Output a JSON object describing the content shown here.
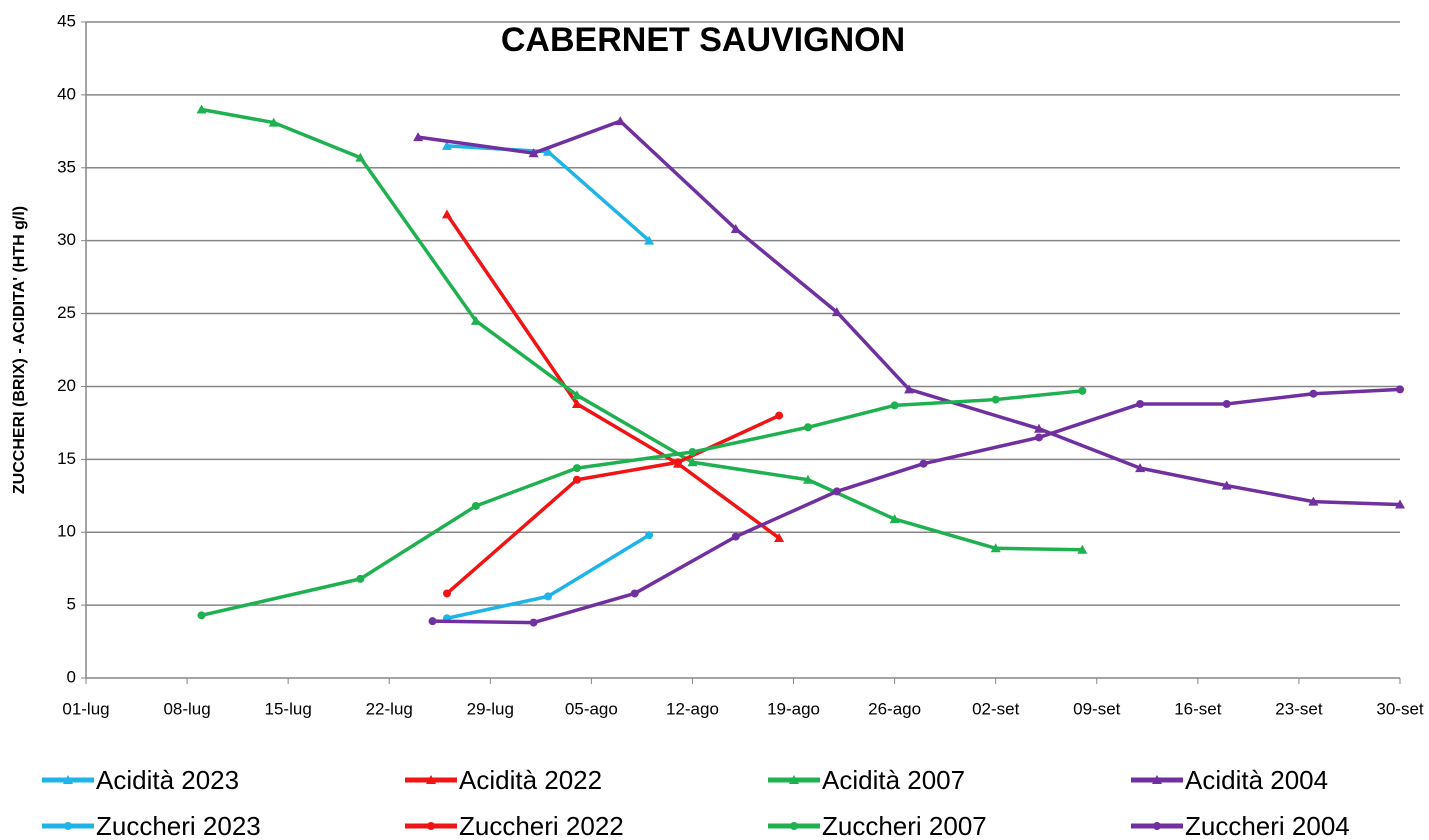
{
  "chart_data": {
    "type": "line",
    "title": "CABERNET SAUVIGNON",
    "y_label": "ZUCCHERI (BRIX) - ACIDITA' (HTH g/l)",
    "xlim": [
      1,
      92
    ],
    "xticks": [
      {
        "value": 1,
        "label": "01-lug"
      },
      {
        "value": 8,
        "label": "08-lug"
      },
      {
        "value": 15,
        "label": "15-lug"
      },
      {
        "value": 22,
        "label": "22-lug"
      },
      {
        "value": 29,
        "label": "29-lug"
      },
      {
        "value": 36,
        "label": "05-ago"
      },
      {
        "value": 43,
        "label": "12-ago"
      },
      {
        "value": 50,
        "label": "19-ago"
      },
      {
        "value": 57,
        "label": "26-ago"
      },
      {
        "value": 64,
        "label": "02-set"
      },
      {
        "value": 71,
        "label": "09-set"
      },
      {
        "value": 78,
        "label": "16-set"
      },
      {
        "value": 85,
        "label": "23-set"
      },
      {
        "value": 92,
        "label": "30-set"
      }
    ],
    "ylim": [
      0,
      45
    ],
    "yticks": [
      0,
      5,
      10,
      15,
      20,
      25,
      30,
      35,
      40,
      45
    ],
    "grid": true,
    "legend": "bottom",
    "series": [
      {
        "name": "Acidità 2023",
        "color": "#1fb4e8",
        "marker": "triangle",
        "x": [
          26,
          33,
          40
        ],
        "values": [
          36.5,
          36.1,
          30.0
        ]
      },
      {
        "name": "Acidità 2022",
        "color": "#f01414",
        "marker": "triangle",
        "x": [
          26,
          35,
          42,
          49
        ],
        "values": [
          31.8,
          18.8,
          14.7,
          9.6
        ]
      },
      {
        "name": "Acidità 2007",
        "color": "#1fb050",
        "marker": "triangle",
        "x": [
          9,
          14,
          20,
          28,
          35,
          43,
          51,
          57,
          64,
          70
        ],
        "values": [
          39.0,
          38.1,
          35.7,
          24.5,
          19.4,
          14.8,
          13.6,
          10.9,
          8.9,
          8.8
        ]
      },
      {
        "name": "Acidità 2004",
        "color": "#7030a0",
        "marker": "triangle",
        "x": [
          24,
          32,
          38,
          46,
          53,
          58,
          67,
          74,
          80,
          86,
          92
        ],
        "values": [
          37.1,
          36.0,
          38.2,
          30.8,
          25.1,
          19.8,
          17.1,
          14.4,
          13.2,
          12.1,
          11.9
        ]
      },
      {
        "name": "Zuccheri 2023",
        "color": "#1fb4e8",
        "marker": "circle",
        "x": [
          26,
          33,
          40
        ],
        "values": [
          4.1,
          5.6,
          9.8
        ]
      },
      {
        "name": "Zuccheri 2022",
        "color": "#f01414",
        "marker": "circle",
        "x": [
          26,
          35,
          42,
          49
        ],
        "values": [
          5.8,
          13.6,
          14.8,
          18.0
        ]
      },
      {
        "name": "Zuccheri 2007",
        "color": "#1fb050",
        "marker": "circle",
        "x": [
          9,
          20,
          28,
          35,
          43,
          51,
          57,
          64,
          70
        ],
        "values": [
          4.3,
          6.8,
          11.8,
          14.4,
          15.5,
          17.2,
          18.7,
          19.1,
          19.7
        ]
      },
      {
        "name": "Zuccheri 2004",
        "color": "#7030a0",
        "marker": "circle",
        "x": [
          25,
          32,
          39,
          46,
          53,
          59,
          67,
          74,
          80,
          86,
          92
        ],
        "values": [
          3.9,
          3.8,
          5.8,
          9.7,
          12.8,
          14.7,
          16.5,
          18.8,
          18.8,
          19.5,
          19.8
        ]
      }
    ]
  }
}
